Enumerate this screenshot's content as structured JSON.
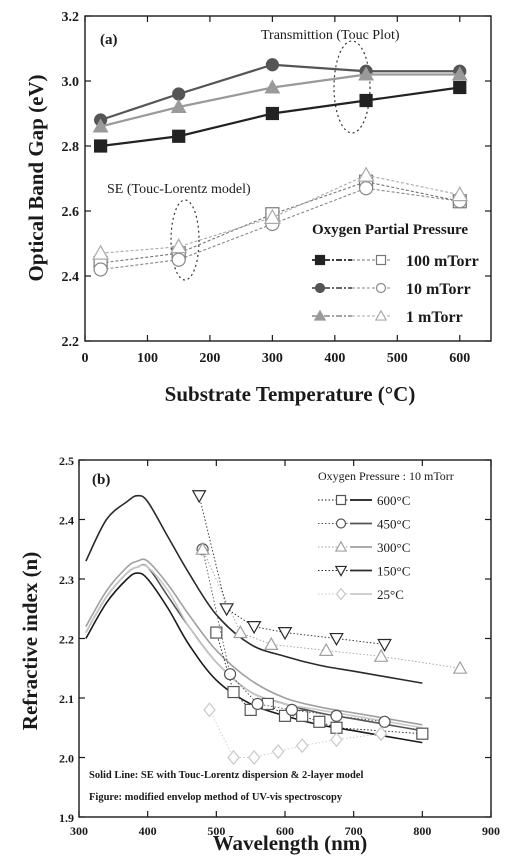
{
  "chart_data": [
    {
      "type": "line",
      "panel_label": "(a)",
      "xlabel": "Substrate Temperature (°C)",
      "ylabel": "Optical Band Gap (eV)",
      "xlim": [
        0,
        650
      ],
      "ylim": [
        2.2,
        3.2
      ],
      "xticks": [
        "0",
        "100",
        "200",
        "300",
        "400",
        "500",
        "600"
      ],
      "yticks": [
        "2.2",
        "2.4",
        "2.6",
        "2.8",
        "3.0",
        "3.2"
      ],
      "annotations": {
        "transmission": "Transmittion (Touc Plot)",
        "se": "SE (Touc-Lorentz model)"
      },
      "legend": {
        "title": "Oxygen Partial Pressure",
        "position": "right"
      },
      "x": [
        25,
        150,
        300,
        450,
        600
      ],
      "series": [
        {
          "name": "100 mTorr",
          "method": "transmission",
          "marker": "filled-square",
          "color": "#222222",
          "values": [
            2.8,
            2.83,
            2.9,
            2.94,
            2.98
          ]
        },
        {
          "name": "10 mTorr",
          "method": "transmission",
          "marker": "filled-circle",
          "color": "#555555",
          "values": [
            2.88,
            2.96,
            3.05,
            3.03,
            3.03
          ]
        },
        {
          "name": "1 mTorr",
          "method": "transmission",
          "marker": "filled-triangle",
          "color": "#9a9a9a",
          "values": [
            2.86,
            2.92,
            2.98,
            3.02,
            3.02
          ]
        },
        {
          "name": "100 mTorr",
          "method": "SE",
          "marker": "open-square",
          "color": "#777777",
          "values": [
            2.44,
            2.47,
            2.59,
            2.69,
            2.63
          ]
        },
        {
          "name": "10 mTorr",
          "method": "SE",
          "marker": "open-circle",
          "color": "#888888",
          "values": [
            2.42,
            2.45,
            2.56,
            2.67,
            2.63
          ]
        },
        {
          "name": "1 mTorr",
          "method": "SE",
          "marker": "open-triangle",
          "color": "#aaaaaa",
          "values": [
            2.47,
            2.49,
            2.58,
            2.71,
            2.65
          ]
        }
      ]
    },
    {
      "type": "line",
      "panel_label": "(b)",
      "xlabel": "Wavelength (nm)",
      "ylabel": "Refractive index (n)",
      "xlim": [
        300,
        900
      ],
      "ylim": [
        1.9,
        2.5
      ],
      "xticks": [
        "300",
        "400",
        "500",
        "600",
        "700",
        "800",
        "900"
      ],
      "yticks": [
        "1.9",
        "2.0",
        "2.1",
        "2.2",
        "2.3",
        "2.4",
        "2.5"
      ],
      "legend": {
        "title": "Oxygen Pressure : 10 mTorr",
        "position": "top-right"
      },
      "notes": [
        "Solid Line: SE with Touc-Lorentz dispersion & 2-layer model",
        "Figure: modified envelop method of UV-vis spectroscopy"
      ],
      "series": [
        {
          "name": "600°C",
          "marker": "open-square",
          "color": "#1a1a1a",
          "curve": {
            "x": [
              310,
              340,
              370,
              385,
              400,
              430,
              460,
              500,
              550,
              600,
              650,
              700,
              750,
              800
            ],
            "y": [
              2.2,
              2.26,
              2.3,
              2.31,
              2.3,
              2.25,
              2.19,
              2.13,
              2.09,
              2.07,
              2.055,
              2.045,
              2.035,
              2.025
            ]
          },
          "points": {
            "x": [
              500,
              525,
              550,
              575,
              600,
              625,
              650,
              675,
              800
            ],
            "y": [
              2.21,
              2.11,
              2.08,
              2.09,
              2.07,
              2.07,
              2.06,
              2.05,
              2.04
            ]
          }
        },
        {
          "name": "450°C",
          "marker": "open-circle",
          "color": "#555555",
          "curve": {
            "x": [
              310,
              340,
              370,
              385,
              400,
              430,
              460,
              500,
              550,
              600,
              650,
              700,
              750,
              800
            ],
            "y": [
              2.21,
              2.27,
              2.31,
              2.32,
              2.32,
              2.27,
              2.22,
              2.16,
              2.11,
              2.09,
              2.075,
              2.065,
              2.055,
              2.045
            ]
          },
          "points": {
            "x": [
              480,
              520,
              560,
              610,
              675,
              745
            ],
            "y": [
              2.35,
              2.14,
              2.09,
              2.08,
              2.07,
              2.06
            ]
          }
        },
        {
          "name": "300°C",
          "marker": "open-triangle",
          "color": "#a0a0a0",
          "curve": {
            "x": [
              310,
              340,
              370,
              385,
              400,
              430,
              460,
              500,
              550,
              600,
              650,
              700,
              750,
              800
            ],
            "y": [
              2.22,
              2.28,
              2.32,
              2.33,
              2.33,
              2.29,
              2.24,
              2.18,
              2.13,
              2.1,
              2.085,
              2.075,
              2.065,
              2.055
            ]
          },
          "points": {
            "x": [
              480,
              535,
              580,
              660,
              740,
              855
            ],
            "y": [
              2.35,
              2.21,
              2.19,
              2.18,
              2.17,
              2.15
            ]
          }
        },
        {
          "name": "150°C",
          "marker": "open-inverted-triangle",
          "color": "#2a2a2a",
          "curve": {
            "x": [
              310,
              340,
              370,
              385,
              400,
              430,
              460,
              500,
              550,
              600,
              650,
              700,
              750,
              800
            ],
            "y": [
              2.33,
              2.4,
              2.43,
              2.44,
              2.43,
              2.37,
              2.31,
              2.24,
              2.19,
              2.17,
              2.155,
              2.145,
              2.135,
              2.125
            ]
          },
          "points": {
            "x": [
              475,
              515,
              555,
              600,
              675,
              745
            ],
            "y": [
              2.44,
              2.25,
              2.22,
              2.21,
              2.2,
              2.19
            ]
          }
        },
        {
          "name": "25°C",
          "marker": "open-diamond",
          "color": "#c8c8c8",
          "curve": {
            "x": [
              310,
              340,
              370,
              385,
              400,
              430,
              460,
              500,
              550,
              600,
              650,
              700,
              750,
              800
            ],
            "y": [
              2.21,
              2.27,
              2.31,
              2.32,
              2.32,
              2.28,
              2.22,
              2.16,
              2.11,
              2.09,
              2.08,
              2.07,
              2.06,
              2.05
            ]
          },
          "points": {
            "x": [
              490,
              525,
              555,
              590,
              625,
              675,
              740
            ],
            "y": [
              2.08,
              2.0,
              2.0,
              2.01,
              2.02,
              2.03,
              2.04
            ]
          }
        }
      ]
    }
  ]
}
